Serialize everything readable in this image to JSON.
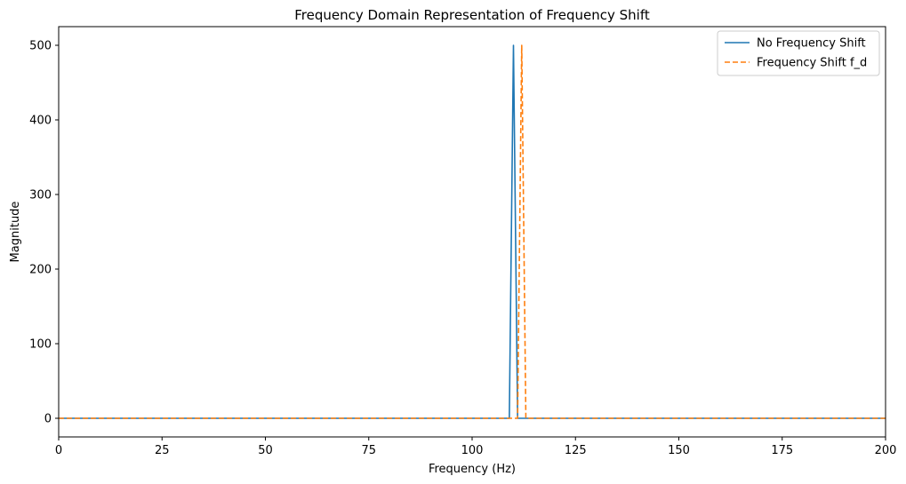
{
  "chart_data": {
    "type": "line",
    "title": "Frequency Domain Representation of Frequency Shift",
    "xlabel": "Frequency (Hz)",
    "ylabel": "Magnitude",
    "xlim": [
      0,
      200
    ],
    "ylim": [
      -25,
      525
    ],
    "xticks": [
      0,
      25,
      50,
      75,
      100,
      125,
      150,
      175,
      200
    ],
    "yticks": [
      0,
      100,
      200,
      300,
      400,
      500
    ],
    "grid": false,
    "legend_position": "top-right",
    "series": [
      {
        "name": "No Frequency Shift",
        "color": "#1f77b4",
        "style": "solid",
        "x": [
          0,
          109,
          110,
          111,
          200
        ],
        "y": [
          0,
          0,
          500,
          0,
          0
        ]
      },
      {
        "name": "Frequency Shift f_d",
        "color": "#ff7f0e",
        "style": "dashed",
        "x": [
          0,
          111,
          112,
          113,
          200
        ],
        "y": [
          0,
          0,
          500,
          0,
          0
        ]
      }
    ]
  }
}
